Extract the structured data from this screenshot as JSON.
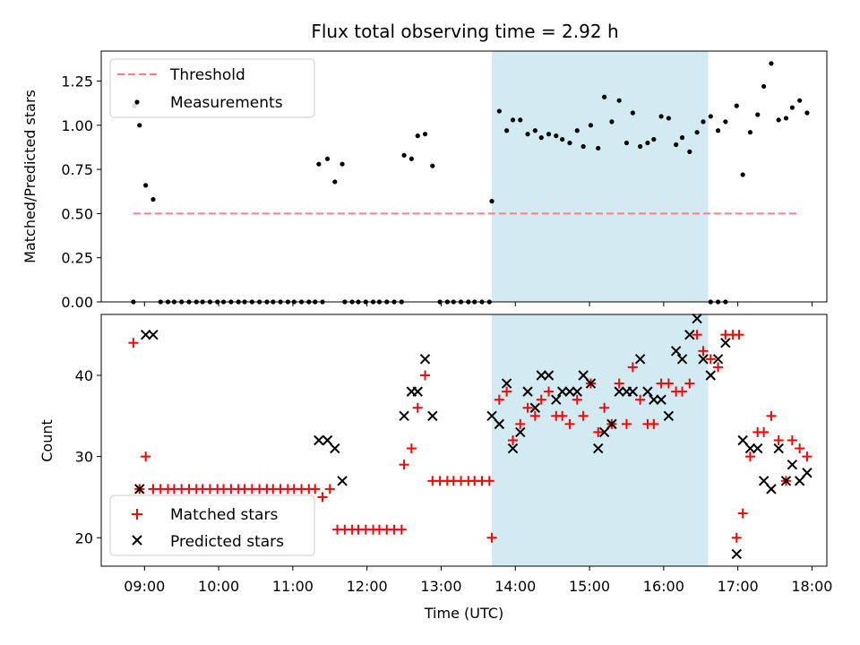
{
  "colors": {
    "shade": "#add8e6",
    "threshold": "#ff7f7f",
    "measurement": "#000000",
    "matched": "#ff0000",
    "predicted": "#000000"
  },
  "chart_data": [
    {
      "type": "scatter",
      "title": "Flux total observing time = 2.92 h",
      "xlabel": "",
      "ylabel": "Matched/Predicted stars",
      "xlim": [
        "08:25",
        "18:12"
      ],
      "ylim": [
        0,
        1.42
      ],
      "yticks": [
        "0.00",
        "0.25",
        "0.50",
        "0.75",
        "1.00",
        "1.25"
      ],
      "shaded_interval": [
        "13:41",
        "16:36"
      ],
      "legend_position": "upper left",
      "legend": [
        "Threshold",
        "Measurements"
      ],
      "threshold": {
        "name": "Threshold",
        "value": 0.5,
        "x": [
          "08:51",
          "17:48"
        ]
      },
      "series": [
        {
          "name": "Measurements",
          "points": [
            [
              "08:51",
              0.0
            ],
            [
              "08:52",
              1.11
            ],
            [
              "08:56",
              1.0
            ],
            [
              "09:01",
              0.66
            ],
            [
              "09:07",
              0.58
            ],
            [
              "09:13",
              0.0
            ],
            [
              "09:19",
              0.0
            ],
            [
              "09:24",
              0.0
            ],
            [
              "09:30",
              0.0
            ],
            [
              "09:36",
              0.0
            ],
            [
              "09:42",
              0.0
            ],
            [
              "09:47",
              0.0
            ],
            [
              "09:53",
              0.0
            ],
            [
              "09:59",
              0.0
            ],
            [
              "10:04",
              0.0
            ],
            [
              "10:10",
              0.0
            ],
            [
              "10:16",
              0.0
            ],
            [
              "10:21",
              0.0
            ],
            [
              "10:27",
              0.0
            ],
            [
              "10:33",
              0.0
            ],
            [
              "10:39",
              0.0
            ],
            [
              "10:44",
              0.0
            ],
            [
              "10:50",
              0.0
            ],
            [
              "10:56",
              0.0
            ],
            [
              "11:01",
              0.0
            ],
            [
              "11:07",
              0.0
            ],
            [
              "11:13",
              0.0
            ],
            [
              "11:18",
              0.0
            ],
            [
              "11:24",
              0.0
            ],
            [
              "11:21",
              0.78
            ],
            [
              "11:28",
              0.81
            ],
            [
              "11:34",
              0.68
            ],
            [
              "11:40",
              0.78
            ],
            [
              "11:42",
              0.0
            ],
            [
              "11:48",
              0.0
            ],
            [
              "11:53",
              0.0
            ],
            [
              "11:59",
              0.0
            ],
            [
              "12:05",
              0.0
            ],
            [
              "12:10",
              0.0
            ],
            [
              "12:16",
              0.0
            ],
            [
              "12:22",
              0.0
            ],
            [
              "12:28",
              0.0
            ],
            [
              "12:30",
              0.83
            ],
            [
              "12:36",
              0.81
            ],
            [
              "12:41",
              0.94
            ],
            [
              "12:47",
              0.95
            ],
            [
              "12:53",
              0.77
            ],
            [
              "12:59",
              0.0
            ],
            [
              "13:05",
              0.0
            ],
            [
              "13:10",
              0.0
            ],
            [
              "13:16",
              0.0
            ],
            [
              "13:22",
              0.0
            ],
            [
              "13:27",
              0.0
            ],
            [
              "13:33",
              0.0
            ],
            [
              "13:39",
              0.0
            ],
            [
              "13:41",
              0.57
            ],
            [
              "13:47",
              1.08
            ],
            [
              "13:53",
              0.97
            ],
            [
              "13:58",
              1.03
            ],
            [
              "14:04",
              1.03
            ],
            [
              "14:10",
              0.95
            ],
            [
              "14:16",
              0.97
            ],
            [
              "14:21",
              0.93
            ],
            [
              "14:27",
              0.95
            ],
            [
              "14:33",
              0.94
            ],
            [
              "14:38",
              0.92
            ],
            [
              "14:44",
              0.9
            ],
            [
              "14:50",
              0.97
            ],
            [
              "14:55",
              0.88
            ],
            [
              "15:01",
              1.0
            ],
            [
              "15:07",
              0.87
            ],
            [
              "15:12",
              1.16
            ],
            [
              "15:18",
              1.02
            ],
            [
              "15:24",
              1.14
            ],
            [
              "15:30",
              0.9
            ],
            [
              "15:35",
              1.07
            ],
            [
              "15:41",
              0.88
            ],
            [
              "15:47",
              0.9
            ],
            [
              "15:52",
              0.92
            ],
            [
              "15:58",
              1.05
            ],
            [
              "16:04",
              1.04
            ],
            [
              "16:10",
              0.89
            ],
            [
              "16:15",
              0.93
            ],
            [
              "16:21",
              0.85
            ],
            [
              "16:27",
              0.96
            ],
            [
              "16:32",
              1.02
            ],
            [
              "16:38",
              1.05
            ],
            [
              "16:44",
              0.97
            ],
            [
              "16:50",
              1.02
            ],
            [
              "16:38",
              0.0
            ],
            [
              "16:44",
              0.0
            ],
            [
              "16:50",
              0.0
            ],
            [
              "16:59",
              1.11
            ],
            [
              "17:04",
              0.72
            ],
            [
              "17:10",
              0.96
            ],
            [
              "17:16",
              1.06
            ],
            [
              "17:21",
              1.22
            ],
            [
              "17:27",
              1.35
            ],
            [
              "17:33",
              1.03
            ],
            [
              "17:39",
              1.04
            ],
            [
              "17:44",
              1.1
            ],
            [
              "17:50",
              1.14
            ],
            [
              "17:56",
              1.07
            ]
          ]
        }
      ]
    },
    {
      "type": "scatter",
      "title": "",
      "xlabel": "Time (UTC)",
      "ylabel": "Count",
      "xlim": [
        "08:25",
        "18:12"
      ],
      "ylim": [
        16.5,
        47.5
      ],
      "xticks": [
        "09:00",
        "10:00",
        "11:00",
        "12:00",
        "13:00",
        "14:00",
        "15:00",
        "16:00",
        "17:00",
        "18:00"
      ],
      "yticks": [
        "20",
        "30",
        "40"
      ],
      "shaded_interval": [
        "13:41",
        "16:36"
      ],
      "legend_position": "lower left",
      "legend": [
        "Matched stars",
        "Predicted stars"
      ],
      "series": [
        {
          "name": "Matched stars",
          "marker": "+",
          "points": [
            [
              "08:51",
              44
            ],
            [
              "08:56",
              26
            ],
            [
              "09:01",
              30
            ],
            [
              "09:07",
              26
            ],
            [
              "09:13",
              26
            ],
            [
              "09:19",
              26
            ],
            [
              "09:24",
              26
            ],
            [
              "09:30",
              26
            ],
            [
              "09:36",
              26
            ],
            [
              "09:42",
              26
            ],
            [
              "09:47",
              26
            ],
            [
              "09:53",
              26
            ],
            [
              "09:59",
              26
            ],
            [
              "10:04",
              26
            ],
            [
              "10:10",
              26
            ],
            [
              "10:16",
              26
            ],
            [
              "10:21",
              26
            ],
            [
              "10:27",
              26
            ],
            [
              "10:33",
              26
            ],
            [
              "10:39",
              26
            ],
            [
              "10:44",
              26
            ],
            [
              "10:50",
              26
            ],
            [
              "10:56",
              26
            ],
            [
              "11:01",
              26
            ],
            [
              "11:07",
              26
            ],
            [
              "11:13",
              26
            ],
            [
              "11:18",
              26
            ],
            [
              "11:24",
              25
            ],
            [
              "11:30",
              26
            ],
            [
              "11:36",
              21
            ],
            [
              "11:42",
              21
            ],
            [
              "11:48",
              21
            ],
            [
              "11:53",
              21
            ],
            [
              "11:59",
              21
            ],
            [
              "12:05",
              21
            ],
            [
              "12:10",
              21
            ],
            [
              "12:16",
              21
            ],
            [
              "12:22",
              21
            ],
            [
              "12:28",
              21
            ],
            [
              "12:30",
              29
            ],
            [
              "12:36",
              31
            ],
            [
              "12:41",
              36
            ],
            [
              "12:47",
              40
            ],
            [
              "12:53",
              27
            ],
            [
              "12:59",
              27
            ],
            [
              "13:05",
              27
            ],
            [
              "13:10",
              27
            ],
            [
              "13:16",
              27
            ],
            [
              "13:22",
              27
            ],
            [
              "13:27",
              27
            ],
            [
              "13:33",
              27
            ],
            [
              "13:39",
              27
            ],
            [
              "13:41",
              20
            ],
            [
              "13:47",
              37
            ],
            [
              "13:53",
              38
            ],
            [
              "13:58",
              32
            ],
            [
              "14:04",
              34
            ],
            [
              "14:10",
              36
            ],
            [
              "14:16",
              35
            ],
            [
              "14:21",
              37
            ],
            [
              "14:27",
              38
            ],
            [
              "14:33",
              35
            ],
            [
              "14:38",
              35
            ],
            [
              "14:44",
              34
            ],
            [
              "14:50",
              37
            ],
            [
              "14:55",
              35
            ],
            [
              "15:01",
              39
            ],
            [
              "15:07",
              33
            ],
            [
              "15:12",
              36
            ],
            [
              "15:18",
              34
            ],
            [
              "15:24",
              39
            ],
            [
              "15:30",
              34
            ],
            [
              "15:35",
              41
            ],
            [
              "15:41",
              37
            ],
            [
              "15:47",
              34
            ],
            [
              "15:52",
              34
            ],
            [
              "15:58",
              39
            ],
            [
              "16:04",
              39
            ],
            [
              "16:10",
              38
            ],
            [
              "16:15",
              38
            ],
            [
              "16:21",
              39
            ],
            [
              "16:27",
              45
            ],
            [
              "16:32",
              43
            ],
            [
              "16:38",
              42
            ],
            [
              "16:44",
              41
            ],
            [
              "16:50",
              45
            ],
            [
              "16:56",
              45
            ],
            [
              "17:01",
              45
            ],
            [
              "16:59",
              20
            ],
            [
              "17:04",
              23
            ],
            [
              "17:10",
              30
            ],
            [
              "17:16",
              33
            ],
            [
              "17:21",
              33
            ],
            [
              "17:27",
              35
            ],
            [
              "17:33",
              32
            ],
            [
              "17:39",
              27
            ],
            [
              "17:44",
              32
            ],
            [
              "17:50",
              31
            ],
            [
              "17:56",
              30
            ]
          ]
        },
        {
          "name": "Predicted stars",
          "marker": "x",
          "points": [
            [
              "08:56",
              26
            ],
            [
              "09:01",
              45
            ],
            [
              "09:07",
              45
            ],
            [
              "11:21",
              32
            ],
            [
              "11:28",
              32
            ],
            [
              "11:34",
              31
            ],
            [
              "11:40",
              27
            ],
            [
              "12:30",
              35
            ],
            [
              "12:36",
              38
            ],
            [
              "12:41",
              38
            ],
            [
              "12:47",
              42
            ],
            [
              "12:53",
              35
            ],
            [
              "13:41",
              35
            ],
            [
              "13:47",
              34
            ],
            [
              "13:53",
              39
            ],
            [
              "13:58",
              31
            ],
            [
              "14:04",
              33
            ],
            [
              "14:10",
              38
            ],
            [
              "14:16",
              36
            ],
            [
              "14:21",
              40
            ],
            [
              "14:27",
              40
            ],
            [
              "14:33",
              37
            ],
            [
              "14:38",
              38
            ],
            [
              "14:44",
              38
            ],
            [
              "14:50",
              38
            ],
            [
              "14:55",
              40
            ],
            [
              "15:01",
              39
            ],
            [
              "15:07",
              31
            ],
            [
              "15:12",
              33
            ],
            [
              "15:18",
              34
            ],
            [
              "15:24",
              38
            ],
            [
              "15:30",
              38
            ],
            [
              "15:35",
              38
            ],
            [
              "15:41",
              42
            ],
            [
              "15:47",
              38
            ],
            [
              "15:52",
              37
            ],
            [
              "15:58",
              37
            ],
            [
              "16:04",
              35
            ],
            [
              "16:10",
              43
            ],
            [
              "16:15",
              42
            ],
            [
              "16:21",
              45
            ],
            [
              "16:27",
              47
            ],
            [
              "16:32",
              42
            ],
            [
              "16:38",
              40
            ],
            [
              "16:44",
              42
            ],
            [
              "16:50",
              44
            ],
            [
              "16:59",
              18
            ],
            [
              "17:04",
              32
            ],
            [
              "17:10",
              31
            ],
            [
              "17:16",
              31
            ],
            [
              "17:21",
              27
            ],
            [
              "17:27",
              26
            ],
            [
              "17:33",
              31
            ],
            [
              "17:39",
              27
            ],
            [
              "17:44",
              29
            ],
            [
              "17:50",
              27
            ],
            [
              "17:56",
              28
            ]
          ]
        }
      ]
    }
  ]
}
